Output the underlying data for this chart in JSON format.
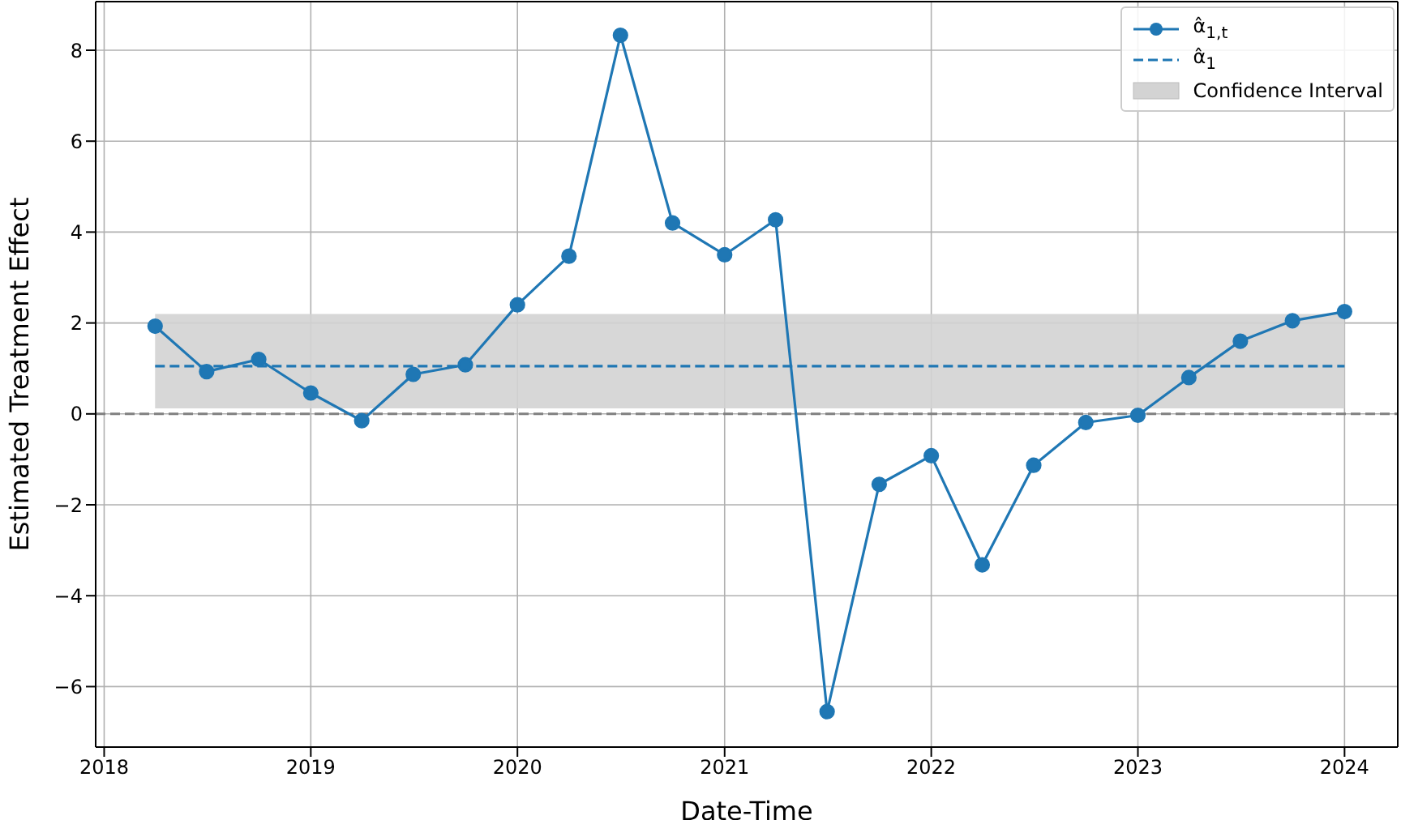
{
  "chart_data": {
    "type": "line",
    "xlabel": "Date-Time",
    "ylabel": "Estimated Treatment Effect",
    "x": [
      "2018-04",
      "2018-07",
      "2018-10",
      "2019-01",
      "2019-04",
      "2019-07",
      "2019-10",
      "2020-01",
      "2020-04",
      "2020-07",
      "2020-10",
      "2021-01",
      "2021-04",
      "2021-07",
      "2021-10",
      "2022-01",
      "2022-04",
      "2022-07",
      "2022-10",
      "2023-01",
      "2023-04",
      "2023-07",
      "2023-10",
      "2024-01"
    ],
    "series": [
      {
        "name": "α̂$_{1,t}$",
        "color": "#1f77b4",
        "marker": "circle",
        "line_style": "solid",
        "values": [
          1.93,
          0.93,
          1.2,
          0.46,
          -0.15,
          0.87,
          1.08,
          2.4,
          3.47,
          8.33,
          4.2,
          3.5,
          4.27,
          -6.55,
          -1.55,
          -0.92,
          -3.32,
          -1.13,
          -0.19,
          -0.03,
          0.8,
          1.6,
          2.05,
          2.25
        ]
      },
      {
        "name": "α̂$_{1}$",
        "color": "#1f77b4",
        "marker": "none",
        "line_style": "dashed",
        "values": [
          1.05,
          1.05,
          1.05,
          1.05,
          1.05,
          1.05,
          1.05,
          1.05,
          1.05,
          1.05,
          1.05,
          1.05,
          1.05,
          1.05,
          1.05,
          1.05,
          1.05,
          1.05,
          1.05,
          1.05,
          1.05,
          1.05,
          1.05,
          1.05
        ]
      }
    ],
    "bands": [
      {
        "axis": "y",
        "from": 0.12,
        "to": 2.2,
        "label": "Confidence Interval",
        "color": "#d3d3d3"
      }
    ],
    "ref_lines": [
      {
        "axis": "y",
        "value": 0,
        "color": "#808080",
        "line_style": "dashed"
      }
    ],
    "xlim": [
      "2017-12-17",
      "2024-04-04"
    ],
    "xticks": [
      "2018",
      "2019",
      "2020",
      "2021",
      "2022",
      "2023",
      "2024"
    ],
    "ylim": [
      -7.33,
      9.07
    ],
    "yticks": [
      {
        "value": -6,
        "label": "−6"
      },
      {
        "value": -4,
        "label": "−4"
      },
      {
        "value": -2,
        "label": "−2"
      },
      0,
      2,
      4,
      6,
      8
    ],
    "grid": true,
    "legend": "top right"
  }
}
